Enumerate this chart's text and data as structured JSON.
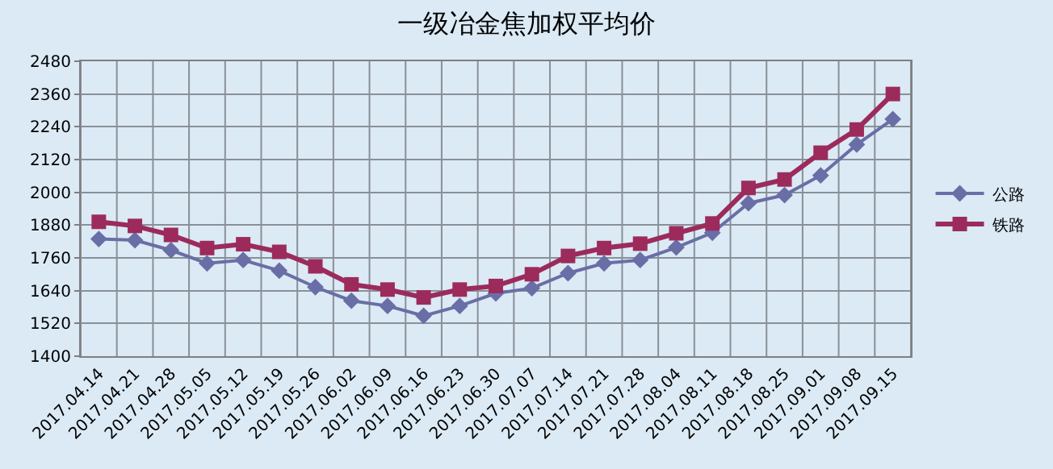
{
  "chart_data": {
    "type": "line",
    "title": "一级冶金焦加权平均价",
    "categories": [
      "2017.04.14",
      "2017.04.21",
      "2017.04.28",
      "2017.05.05",
      "2017.05.12",
      "2017.05.19",
      "2017.05.26",
      "2017.06.02",
      "2017.06.09",
      "2017.06.16",
      "2017.06.23",
      "2017.06.30",
      "2017.07.07",
      "2017.07.14",
      "2017.07.21",
      "2017.07.28",
      "2017.08.04",
      "2017.08.11",
      "2017.08.18",
      "2017.08.25",
      "2017.09.01",
      "2017.09.08",
      "2017.09.15"
    ],
    "series": [
      {
        "name": "公路",
        "color": "#6a6ea6",
        "marker": "diamond",
        "values": [
          1829,
          1825,
          1788,
          1740,
          1752,
          1713,
          1653,
          1603,
          1584,
          1548,
          1584,
          1630,
          1649,
          1704,
          1740,
          1752,
          1798,
          1852,
          1960,
          1990,
          2062,
          2175,
          2268
        ]
      },
      {
        "name": "铁路",
        "color": "#9c2b5c",
        "marker": "square",
        "values": [
          1892,
          1877,
          1844,
          1796,
          1810,
          1782,
          1729,
          1663,
          1644,
          1615,
          1644,
          1657,
          1700,
          1767,
          1796,
          1812,
          1850,
          1886,
          2016,
          2047,
          2145,
          2230,
          2360
        ]
      }
    ],
    "ylim": [
      1400,
      2480
    ],
    "yticks": [
      1400,
      1520,
      1640,
      1760,
      1880,
      2000,
      2120,
      2240,
      2360,
      2480
    ],
    "grid": true,
    "legend": "right",
    "line_style": "solid"
  }
}
